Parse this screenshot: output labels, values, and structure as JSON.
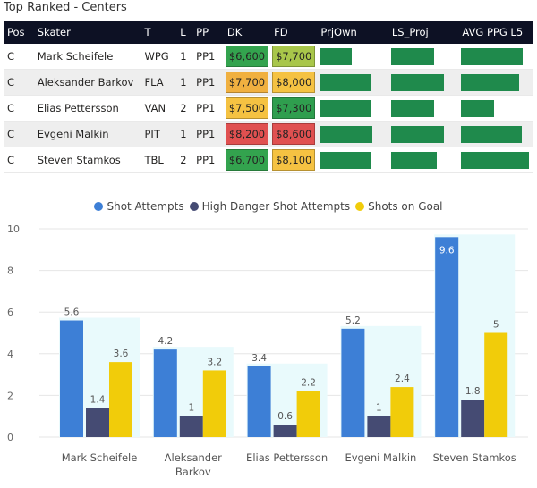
{
  "title": "Top Ranked - Centers",
  "table": {
    "headers": [
      "Pos",
      "Skater",
      "T",
      "L",
      "PP",
      "DK",
      "FD",
      "PrjOwn",
      "LS_Proj",
      "AVG PPG L5"
    ],
    "rows": [
      {
        "pos": "C",
        "skater": "Mark Scheifele",
        "team": "WPG",
        "line": "1",
        "pp": "PP1",
        "dk": "$6,600",
        "dk_color": "#33a34e",
        "fd": "$7,700",
        "fd_color": "#a8c64a",
        "prjown": 0.49,
        "ls_proj": 0.67,
        "avg_ppg": 0.88
      },
      {
        "pos": "C",
        "skater": "Aleksander Barkov",
        "team": "FLA",
        "line": "1",
        "pp": "PP1",
        "dk": "$7,700",
        "dk_color": "#f0b040",
        "fd": "$8,000",
        "fd_color": "#f5c242",
        "prjown": 0.78,
        "ls_proj": 0.81,
        "avg_ppg": 0.83
      },
      {
        "pos": "C",
        "skater": "Elias Pettersson",
        "team": "VAN",
        "line": "2",
        "pp": "PP1",
        "dk": "$7,500",
        "dk_color": "#f5c242",
        "fd": "$7,300",
        "fd_color": "#2f9e4e",
        "prjown": 0.78,
        "ls_proj": 0.67,
        "avg_ppg": 0.47
      },
      {
        "pos": "C",
        "skater": "Evgeni Malkin",
        "team": "PIT",
        "line": "1",
        "pp": "PP1",
        "dk": "$8,200",
        "dk_color": "#e05050",
        "fd": "$8,600",
        "fd_color": "#e05050",
        "prjown": 0.8,
        "ls_proj": 0.82,
        "avg_ppg": 0.87
      },
      {
        "pos": "C",
        "skater": "Steven Stamkos",
        "team": "TBL",
        "line": "2",
        "pp": "PP1",
        "dk": "$6,700",
        "dk_color": "#33a34e",
        "fd": "$8,100",
        "fd_color": "#f5c242",
        "prjown": 0.79,
        "ls_proj": 0.71,
        "avg_ppg": 0.97
      }
    ]
  },
  "chart_data": {
    "type": "bar",
    "categories": [
      "Mark Scheifele",
      "Aleksander Barkov",
      "Elias Pettersson",
      "Evgeni Malkin",
      "Steven Stamkos"
    ],
    "series": [
      {
        "name": "Shot Attempts",
        "color": "#3d7fd6",
        "values": [
          5.6,
          4.2,
          3.4,
          5.2,
          9.6
        ]
      },
      {
        "name": "High Danger Shot Attempts",
        "color": "#454b73",
        "values": [
          1.4,
          1.0,
          0.6,
          1.0,
          1.8
        ]
      },
      {
        "name": "Shots on Goal",
        "color": "#f1cc0a",
        "values": [
          3.6,
          3.2,
          2.2,
          2.4,
          5.0
        ]
      }
    ],
    "yticks": [
      0,
      2,
      4,
      6,
      8,
      10
    ],
    "ylim": [
      0,
      10
    ],
    "title": "",
    "xlabel": "",
    "ylabel": ""
  }
}
